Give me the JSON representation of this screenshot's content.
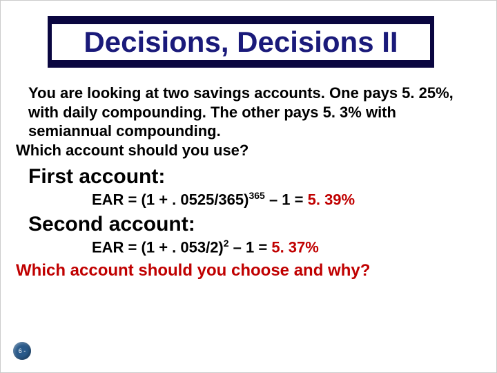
{
  "slide": {
    "title": "Decisions, Decisions II",
    "title_bg": "#0a0640",
    "title_fg": "#1a1a7a",
    "problem_lines": [
      "You are looking at two savings accounts. One pays 5. 25%, with daily compounding. The other pays 5. 3% with semiannual compounding.",
      "Which account should you use?"
    ],
    "first_label": "First account:",
    "first_ear_prefix": "EAR = (1 + . 0525/365)",
    "first_ear_exp": "365",
    "first_ear_mid": " – 1 = ",
    "first_ear_result": "5. 39%",
    "second_label": "Second account:",
    "second_ear_prefix": "EAR = (1 + . 053/2)",
    "second_ear_exp": "2",
    "second_ear_mid": " – 1 = ",
    "second_ear_result": "5. 37%",
    "final_question": "Which account should you choose and why?",
    "page_label": "6 -",
    "highlight_color": "#c00000"
  }
}
